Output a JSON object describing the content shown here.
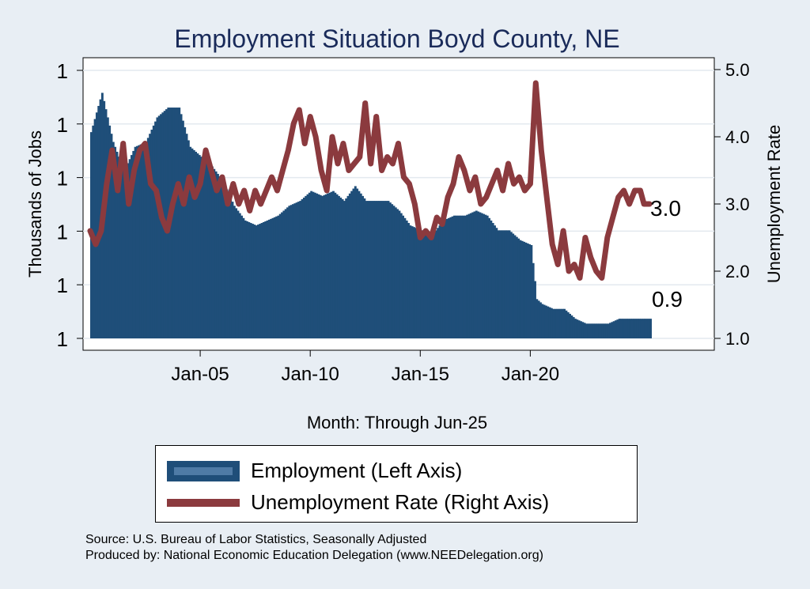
{
  "chart_data": {
    "type": "bar",
    "title": "Employment Situation Boyd  County, NE",
    "xlabel": "Month: Through Jun-25",
    "ylabel_left": "Thousands of Jobs",
    "ylabel_right": "Unemployment Rate",
    "left_tick_labels": [
      "1",
      "1",
      "1",
      "1",
      "1",
      "1"
    ],
    "right_tick_labels": [
      "1.0",
      "2.0",
      "3.0",
      "4.0",
      "5.0"
    ],
    "right_ylim": [
      1.0,
      5.0
    ],
    "x_tick_labels": [
      "Jan-05",
      "Jan-10",
      "Jan-15",
      "Jan-20"
    ],
    "x_range": [
      "Jan-00",
      "Jun-25"
    ],
    "left_axis_note": "employment in thousands, approx. 0.9 to 1.4",
    "end_labels": {
      "employment": "0.9",
      "unemployment": "3.0"
    },
    "series": [
      {
        "name": "Employment (Left Axis)",
        "kind": "bar",
        "color": "#1f4e79",
        "points": [
          [
            "2000-01",
            1.32
          ],
          [
            "2000-07",
            1.4
          ],
          [
            "2001-01",
            1.3
          ],
          [
            "2001-07",
            1.24
          ],
          [
            "2002-01",
            1.29
          ],
          [
            "2002-07",
            1.3
          ],
          [
            "2003-01",
            1.35
          ],
          [
            "2003-07",
            1.37
          ],
          [
            "2004-01",
            1.37
          ],
          [
            "2004-07",
            1.29
          ],
          [
            "2005-01",
            1.27
          ],
          [
            "2005-07",
            1.25
          ],
          [
            "2006-01",
            1.22
          ],
          [
            "2006-07",
            1.17
          ],
          [
            "2007-01",
            1.14
          ],
          [
            "2007-07",
            1.13
          ],
          [
            "2008-01",
            1.14
          ],
          [
            "2008-07",
            1.15
          ],
          [
            "2009-01",
            1.17
          ],
          [
            "2009-07",
            1.18
          ],
          [
            "2010-01",
            1.2
          ],
          [
            "2010-07",
            1.19
          ],
          [
            "2011-01",
            1.2
          ],
          [
            "2011-07",
            1.18
          ],
          [
            "2012-01",
            1.21
          ],
          [
            "2012-07",
            1.18
          ],
          [
            "2013-01",
            1.18
          ],
          [
            "2013-07",
            1.18
          ],
          [
            "2014-01",
            1.16
          ],
          [
            "2014-07",
            1.13
          ],
          [
            "2015-01",
            1.12
          ],
          [
            "2015-07",
            1.11
          ],
          [
            "2016-01",
            1.14
          ],
          [
            "2016-07",
            1.15
          ],
          [
            "2017-01",
            1.15
          ],
          [
            "2017-07",
            1.16
          ],
          [
            "2018-01",
            1.15
          ],
          [
            "2018-07",
            1.12
          ],
          [
            "2019-01",
            1.12
          ],
          [
            "2019-07",
            1.1
          ],
          [
            "2020-01",
            1.09
          ],
          [
            "2020-04",
            0.98
          ],
          [
            "2020-07",
            0.97
          ],
          [
            "2021-01",
            0.96
          ],
          [
            "2021-07",
            0.96
          ],
          [
            "2022-01",
            0.94
          ],
          [
            "2022-07",
            0.93
          ],
          [
            "2023-01",
            0.93
          ],
          [
            "2023-07",
            0.93
          ],
          [
            "2024-01",
            0.94
          ],
          [
            "2024-07",
            0.94
          ],
          [
            "2025-01",
            0.94
          ],
          [
            "2025-06",
            0.94
          ]
        ]
      },
      {
        "name": "Unemployment Rate (Right Axis)",
        "kind": "line",
        "color": "#8b3a3e",
        "points": [
          [
            "2000-01",
            2.6
          ],
          [
            "2000-04",
            2.4
          ],
          [
            "2000-07",
            2.6
          ],
          [
            "2000-10",
            3.3
          ],
          [
            "2001-01",
            3.8
          ],
          [
            "2001-04",
            3.2
          ],
          [
            "2001-07",
            3.9
          ],
          [
            "2001-10",
            3.0
          ],
          [
            "2002-01",
            3.5
          ],
          [
            "2002-04",
            3.8
          ],
          [
            "2002-07",
            3.9
          ],
          [
            "2002-10",
            3.3
          ],
          [
            "2003-01",
            3.2
          ],
          [
            "2003-04",
            2.8
          ],
          [
            "2003-07",
            2.6
          ],
          [
            "2003-10",
            3.0
          ],
          [
            "2004-01",
            3.3
          ],
          [
            "2004-04",
            3.0
          ],
          [
            "2004-07",
            3.4
          ],
          [
            "2004-10",
            3.1
          ],
          [
            "2005-01",
            3.3
          ],
          [
            "2005-04",
            3.8
          ],
          [
            "2005-07",
            3.5
          ],
          [
            "2005-10",
            3.2
          ],
          [
            "2006-01",
            3.4
          ],
          [
            "2006-04",
            3.0
          ],
          [
            "2006-07",
            3.3
          ],
          [
            "2006-10",
            3.0
          ],
          [
            "2007-01",
            3.2
          ],
          [
            "2007-04",
            2.9
          ],
          [
            "2007-07",
            3.2
          ],
          [
            "2007-10",
            3.0
          ],
          [
            "2008-01",
            3.2
          ],
          [
            "2008-04",
            3.4
          ],
          [
            "2008-07",
            3.2
          ],
          [
            "2008-10",
            3.5
          ],
          [
            "2009-01",
            3.8
          ],
          [
            "2009-04",
            4.2
          ],
          [
            "2009-07",
            4.4
          ],
          [
            "2009-10",
            3.9
          ],
          [
            "2010-01",
            4.3
          ],
          [
            "2010-04",
            4.0
          ],
          [
            "2010-07",
            3.5
          ],
          [
            "2010-10",
            3.2
          ],
          [
            "2011-01",
            4.0
          ],
          [
            "2011-04",
            3.6
          ],
          [
            "2011-07",
            3.9
          ],
          [
            "2011-10",
            3.5
          ],
          [
            "2012-01",
            3.6
          ],
          [
            "2012-04",
            3.7
          ],
          [
            "2012-07",
            4.5
          ],
          [
            "2012-10",
            3.6
          ],
          [
            "2013-01",
            4.3
          ],
          [
            "2013-04",
            3.5
          ],
          [
            "2013-07",
            3.7
          ],
          [
            "2013-10",
            3.6
          ],
          [
            "2014-01",
            3.9
          ],
          [
            "2014-04",
            3.4
          ],
          [
            "2014-07",
            3.3
          ],
          [
            "2014-10",
            3.0
          ],
          [
            "2015-01",
            2.5
          ],
          [
            "2015-04",
            2.6
          ],
          [
            "2015-07",
            2.5
          ],
          [
            "2015-10",
            2.8
          ],
          [
            "2016-01",
            2.7
          ],
          [
            "2016-04",
            3.1
          ],
          [
            "2016-07",
            3.3
          ],
          [
            "2016-10",
            3.7
          ],
          [
            "2017-01",
            3.5
          ],
          [
            "2017-04",
            3.2
          ],
          [
            "2017-07",
            3.4
          ],
          [
            "2017-10",
            3.0
          ],
          [
            "2018-01",
            3.1
          ],
          [
            "2018-04",
            3.3
          ],
          [
            "2018-07",
            3.5
          ],
          [
            "2018-10",
            3.2
          ],
          [
            "2019-01",
            3.6
          ],
          [
            "2019-04",
            3.3
          ],
          [
            "2019-07",
            3.4
          ],
          [
            "2019-10",
            3.2
          ],
          [
            "2020-01",
            3.3
          ],
          [
            "2020-04",
            4.8
          ],
          [
            "2020-07",
            3.8
          ],
          [
            "2020-10",
            3.1
          ],
          [
            "2021-01",
            2.4
          ],
          [
            "2021-04",
            2.1
          ],
          [
            "2021-07",
            2.6
          ],
          [
            "2021-10",
            2.0
          ],
          [
            "2022-01",
            2.1
          ],
          [
            "2022-04",
            1.9
          ],
          [
            "2022-07",
            2.5
          ],
          [
            "2022-10",
            2.2
          ],
          [
            "2023-01",
            2.0
          ],
          [
            "2023-04",
            1.9
          ],
          [
            "2023-07",
            2.5
          ],
          [
            "2023-10",
            2.8
          ],
          [
            "2024-01",
            3.1
          ],
          [
            "2024-04",
            3.2
          ],
          [
            "2024-07",
            3.0
          ],
          [
            "2024-10",
            3.2
          ],
          [
            "2025-01",
            3.2
          ],
          [
            "2025-03",
            3.0
          ],
          [
            "2025-06",
            3.0
          ]
        ]
      }
    ]
  },
  "legend": {
    "employment": "Employment (Left Axis)",
    "unemployment": "Unemployment Rate (Right Axis)"
  },
  "footer": {
    "source": "Source: U.S. Bureau of Labor Statistics, Seasonally Adjusted",
    "produced_by": "Produced by: National Economic Education Delegation (www.NEEDelegation.org)"
  },
  "colors": {
    "background": "#e8eef4",
    "plot_bg": "#ffffff",
    "employment": "#1f4e79",
    "unemployment": "#8b3a3e",
    "title": "#1a2b5a"
  }
}
